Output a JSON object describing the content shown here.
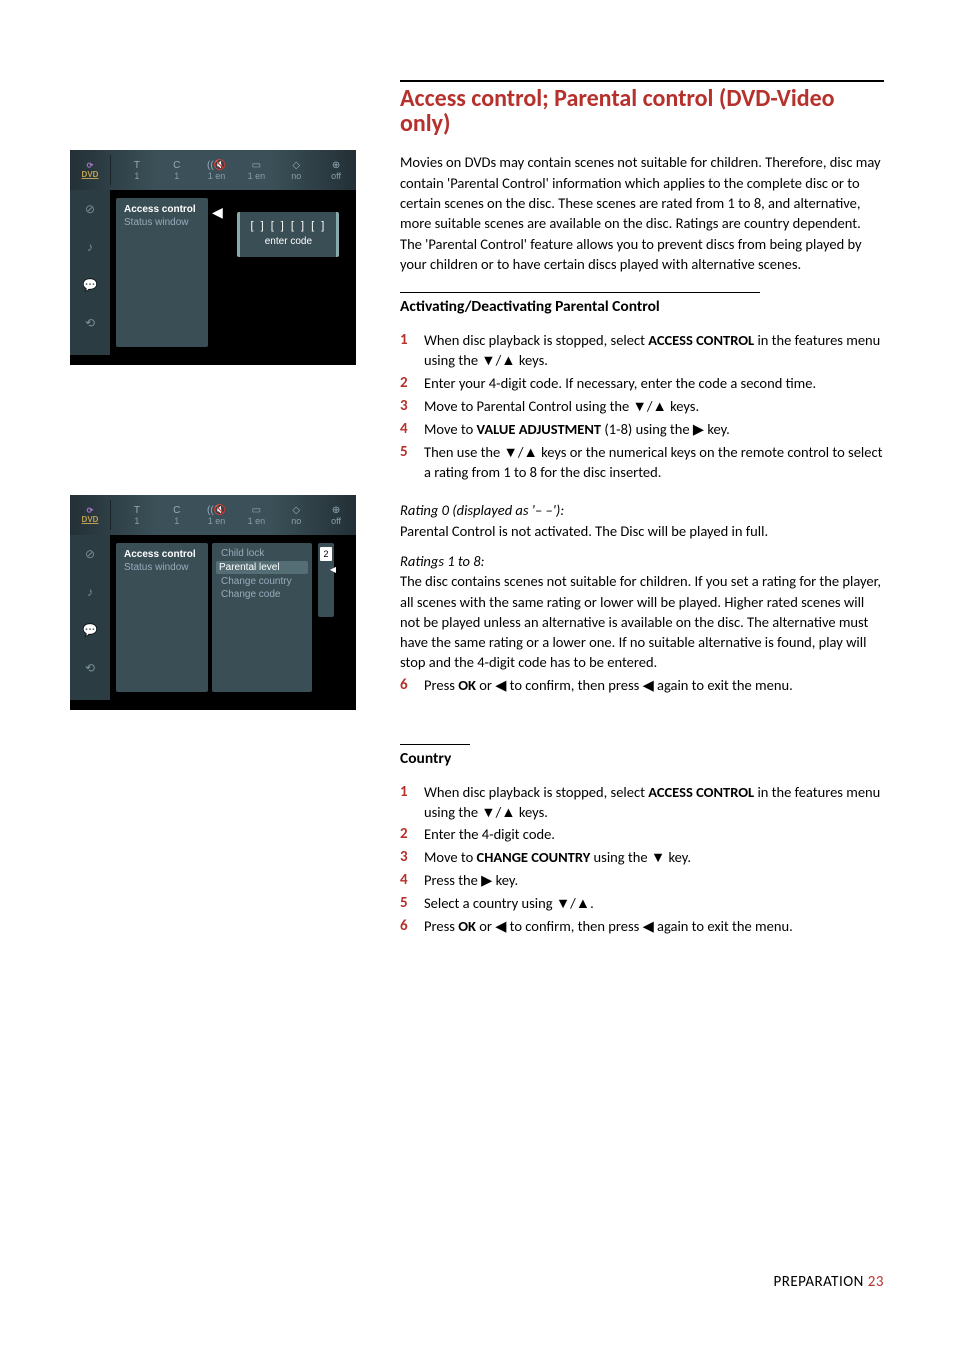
{
  "section_title": "Access control; Parental control (DVD-Video only)",
  "intro": "Movies on DVDs may contain scenes not suitable for children. Therefore, disc may contain 'Parental Control' information which applies to the complete disc or to certain scenes on the disc. These scenes are rated from 1 to 8, and alternative, more suitable scenes are available on the disc. Ratings are country dependent. The 'Parental Control' feature allows you to prevent discs from being played by your children or to have certain discs played with alternative scenes.",
  "sub1_title": "Activating/Deactivating Parental Control",
  "sub1_steps": [
    "When disc playback is stopped, select <b>ACCESS CONTROL</b> in the features menu using the ▼/▲ keys.",
    "Enter your 4-digit code. If necessary, enter the code a second time.",
    "Move to Parental Control using the ▼/▲  keys.",
    "Move to <b>VALUE ADJUSTMENT</b> (1-8) using the ▶  key.",
    "Then use the ▼/▲ keys or the numerical keys on the remote control to select a rating from 1 to 8 for the disc inserted."
  ],
  "rating0_head": "Rating 0 (displayed as '– –'):",
  "rating0_body": "Parental Control is not activated. The Disc will be played in full.",
  "rating18_head": "Ratings 1 to 8:",
  "rating18_body": "The disc contains scenes not suitable for children. If you set a rating for the player, all scenes with the same rating or lower will be played. Higher rated scenes will not be played unless an alternative is available on the disc. The alternative must have the same rating or a lower one. If no suitable alternative is found, play will stop and the 4-digit code has to be entered.",
  "sub1_step6": "Press <b>OK</b> or ◀ to confirm, then press ◀ again to exit the menu.",
  "sub2_title": "Country",
  "sub2_steps": [
    "When disc playback is stopped, select <b>ACCESS CONTROL</b> in the features menu using the ▼/▲  keys.",
    "Enter the 4-digit code.",
    "Move to <b>CHANGE COUNTRY</b> using the ▼ key.",
    "Press the ▶ key.",
    "Select a country using ▼/▲.",
    "Press <b>OK</b> or ◀ to confirm, then press ◀ again to exit the menu."
  ],
  "footer_label": "PREPARATION",
  "footer_page": "23",
  "tv": {
    "hdr_icons": [
      "⟳",
      "T",
      "C",
      "((🔇",
      "▭",
      "◇",
      "⊕"
    ],
    "hdr_vals": [
      "1",
      "1",
      "1 en",
      "1 en",
      "no",
      "off"
    ],
    "side_icons": [
      "⊘",
      "♪",
      "💬",
      "⟲"
    ],
    "panel_title": "Access control",
    "panel_sub": "Status window",
    "code_dots": "[ ] [ ] [ ] [ ]",
    "code_label": "enter code",
    "opts": [
      "Child lock",
      "Parental level",
      "Change country",
      "Change code"
    ],
    "slider_val": "2"
  },
  "colors": {
    "accent": "#b7312c"
  }
}
